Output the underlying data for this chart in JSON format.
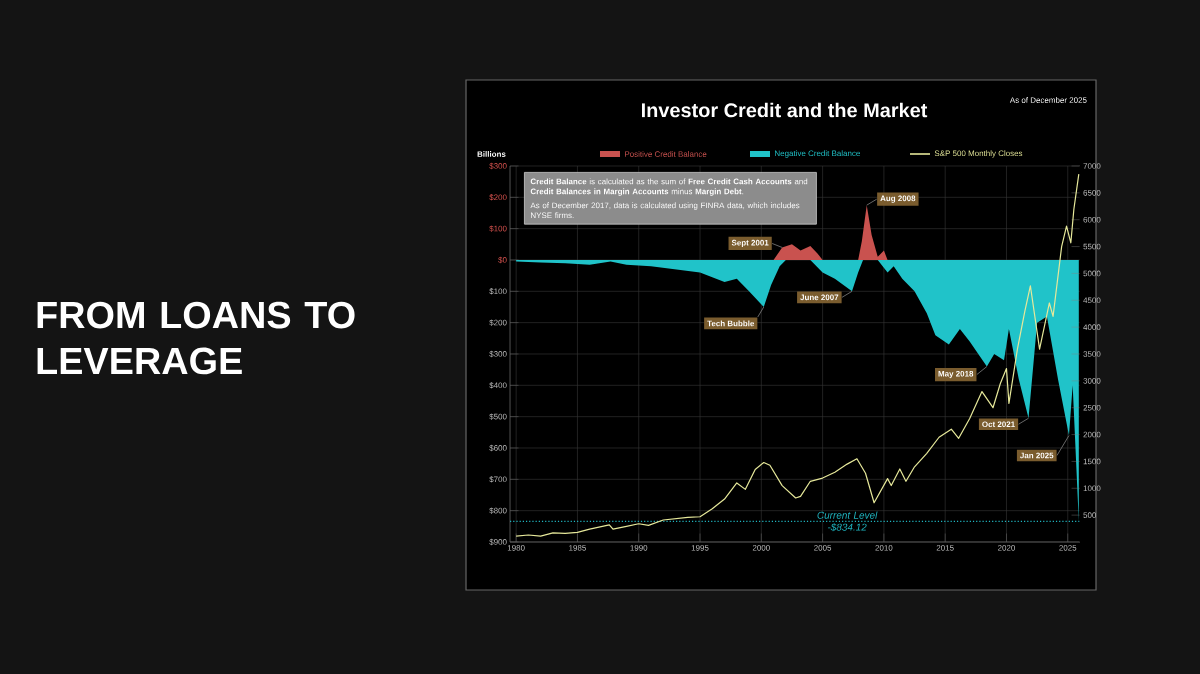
{
  "chart_data": {
    "type": "area",
    "title": "Investor Credit and the Market",
    "subtitle": "FROM LOANS TO LEVERAGE",
    "ylabel": "Billions",
    "annotations": [
      {
        "text": "Sept 2001",
        "x": 2001.7,
        "y": 40
      },
      {
        "text": "Aug 2008",
        "x": 2008.6,
        "y": 175
      },
      {
        "text": "Tech Bubble",
        "x": 2000.2,
        "y": -150
      },
      {
        "text": "June 2007",
        "x": 2007.4,
        "y": -100
      },
      {
        "text": "May 2018",
        "x": 2018.4,
        "y": -340
      },
      {
        "text": "Oct 2021",
        "x": 2021.8,
        "y": -505
      },
      {
        "text": "Jan 2025",
        "x": 2025.1,
        "y": -560
      },
      "**Credit Balance** is calculated as the sum of **Free Credit Cash Accounts** and **Credit Balances in Margin Accounts** minus **Margin Debt**.",
      "As of December 2017, data is calculated using FINRA data, which includes NYSE firms.",
      "As of December 2025"
    ],
    "xlim": [
      1979.5,
      2026
    ],
    "xticks": [
      1980,
      1985,
      1990,
      1995,
      2000,
      2005,
      2010,
      2015,
      2020,
      2025
    ],
    "ylim": [
      -900,
      300
    ],
    "yticks": [
      {
        "value": 300,
        "label": "$300"
      },
      {
        "value": 200,
        "label": "$200"
      },
      {
        "value": 100,
        "label": "$100"
      },
      {
        "value": 0,
        "label": "$0"
      },
      {
        "value": -100,
        "label": "$100"
      },
      {
        "value": -200,
        "label": "$200"
      },
      {
        "value": -300,
        "label": "$300"
      },
      {
        "value": -400,
        "label": "$400"
      },
      {
        "value": -500,
        "label": "$500"
      },
      {
        "value": -600,
        "label": "$600"
      },
      {
        "value": -700,
        "label": "$700"
      },
      {
        "value": -800,
        "label": "$800"
      },
      {
        "value": -900,
        "label": "$900"
      }
    ],
    "y2lim": [
      0,
      7000
    ],
    "y2ticks": [
      500,
      1000,
      1500,
      2000,
      2500,
      3000,
      3500,
      4000,
      4500,
      5000,
      5500,
      6000,
      6500,
      7000
    ],
    "grid": true,
    "legend": "top",
    "ref_lines": [
      {
        "axis": "y",
        "value": -834.12,
        "label": "Current Level -$834.12",
        "color": "#1fb5c0",
        "line_style": "dotted"
      }
    ],
    "series": [
      {
        "name": "Positive Credit Balance",
        "color": "#c9524f",
        "x": [
          2001,
          2001.7,
          2002.5,
          2003.2,
          2004,
          2004.6,
          2005,
          2007.9,
          2008.2,
          2008.6,
          2009,
          2009.5,
          2010,
          2010.3
        ],
        "values": [
          0,
          40,
          50,
          30,
          45,
          20,
          0,
          0,
          60,
          175,
          80,
          10,
          30,
          0
        ]
      },
      {
        "name": "Negative Credit Balance",
        "color": "#20c3c9",
        "x": [
          1980,
          1982,
          1984,
          1986,
          1987.7,
          1989,
          1991,
          1993,
          1995,
          1996,
          1997,
          1998,
          1999,
          2000.2,
          2000.8,
          2001.5,
          2002,
          2004,
          2005,
          2006,
          2007.4,
          2007.9,
          2008.3,
          2009.5,
          2010.3,
          2010.8,
          2011.5,
          2012.5,
          2013.5,
          2014.2,
          2015.3,
          2016.2,
          2017,
          2018.4,
          2019,
          2019.8,
          2020.2,
          2021,
          2021.8,
          2022.5,
          2023.3,
          2024.2,
          2025.1,
          2025.4,
          2025.9
        ],
        "values": [
          -5,
          -8,
          -10,
          -15,
          -5,
          -15,
          -20,
          -30,
          -40,
          -55,
          -70,
          -60,
          -100,
          -150,
          -80,
          -20,
          0,
          0,
          -40,
          -60,
          -100,
          -40,
          0,
          0,
          -40,
          -20,
          -60,
          -100,
          -170,
          -240,
          -270,
          -220,
          -260,
          -340,
          -300,
          -320,
          -220,
          -380,
          -505,
          -200,
          -180,
          -380,
          -560,
          -400,
          -834
        ]
      },
      {
        "name": "S&P 500 Monthly Closes",
        "type": "line",
        "axis": "y2",
        "color": "#e6e89a",
        "x": [
          1980,
          1981,
          1982,
          1983,
          1984,
          1985,
          1986,
          1987.6,
          1987.9,
          1989,
          1990,
          1990.8,
          1992,
          1994,
          1995,
          1996,
          1997,
          1998,
          1998.7,
          1999.5,
          2000.2,
          2000.7,
          2001.7,
          2002.8,
          2003.2,
          2004,
          2005,
          2006,
          2007,
          2007.8,
          2008.5,
          2009.2,
          2010.3,
          2010.6,
          2011.3,
          2011.8,
          2012.5,
          2013.5,
          2014.5,
          2015.5,
          2016.1,
          2017,
          2018,
          2018.9,
          2019.5,
          2020,
          2020.2,
          2020.9,
          2021.5,
          2021.95,
          2022.7,
          2023.5,
          2023.8,
          2024.5,
          2024.9,
          2025.25,
          2025.5,
          2025.9
        ],
        "values": [
          110,
          130,
          110,
          170,
          160,
          180,
          240,
          320,
          240,
          290,
          340,
          310,
          410,
          460,
          470,
          620,
          800,
          1100,
          980,
          1350,
          1480,
          1430,
          1050,
          820,
          850,
          1130,
          1190,
          1300,
          1450,
          1550,
          1280,
          730,
          1180,
          1050,
          1360,
          1130,
          1400,
          1650,
          1950,
          2100,
          1930,
          2300,
          2800,
          2500,
          2950,
          3230,
          2580,
          3600,
          4300,
          4770,
          3590,
          4450,
          4200,
          5500,
          5880,
          5570,
          6200,
          6850
        ]
      }
    ]
  }
}
